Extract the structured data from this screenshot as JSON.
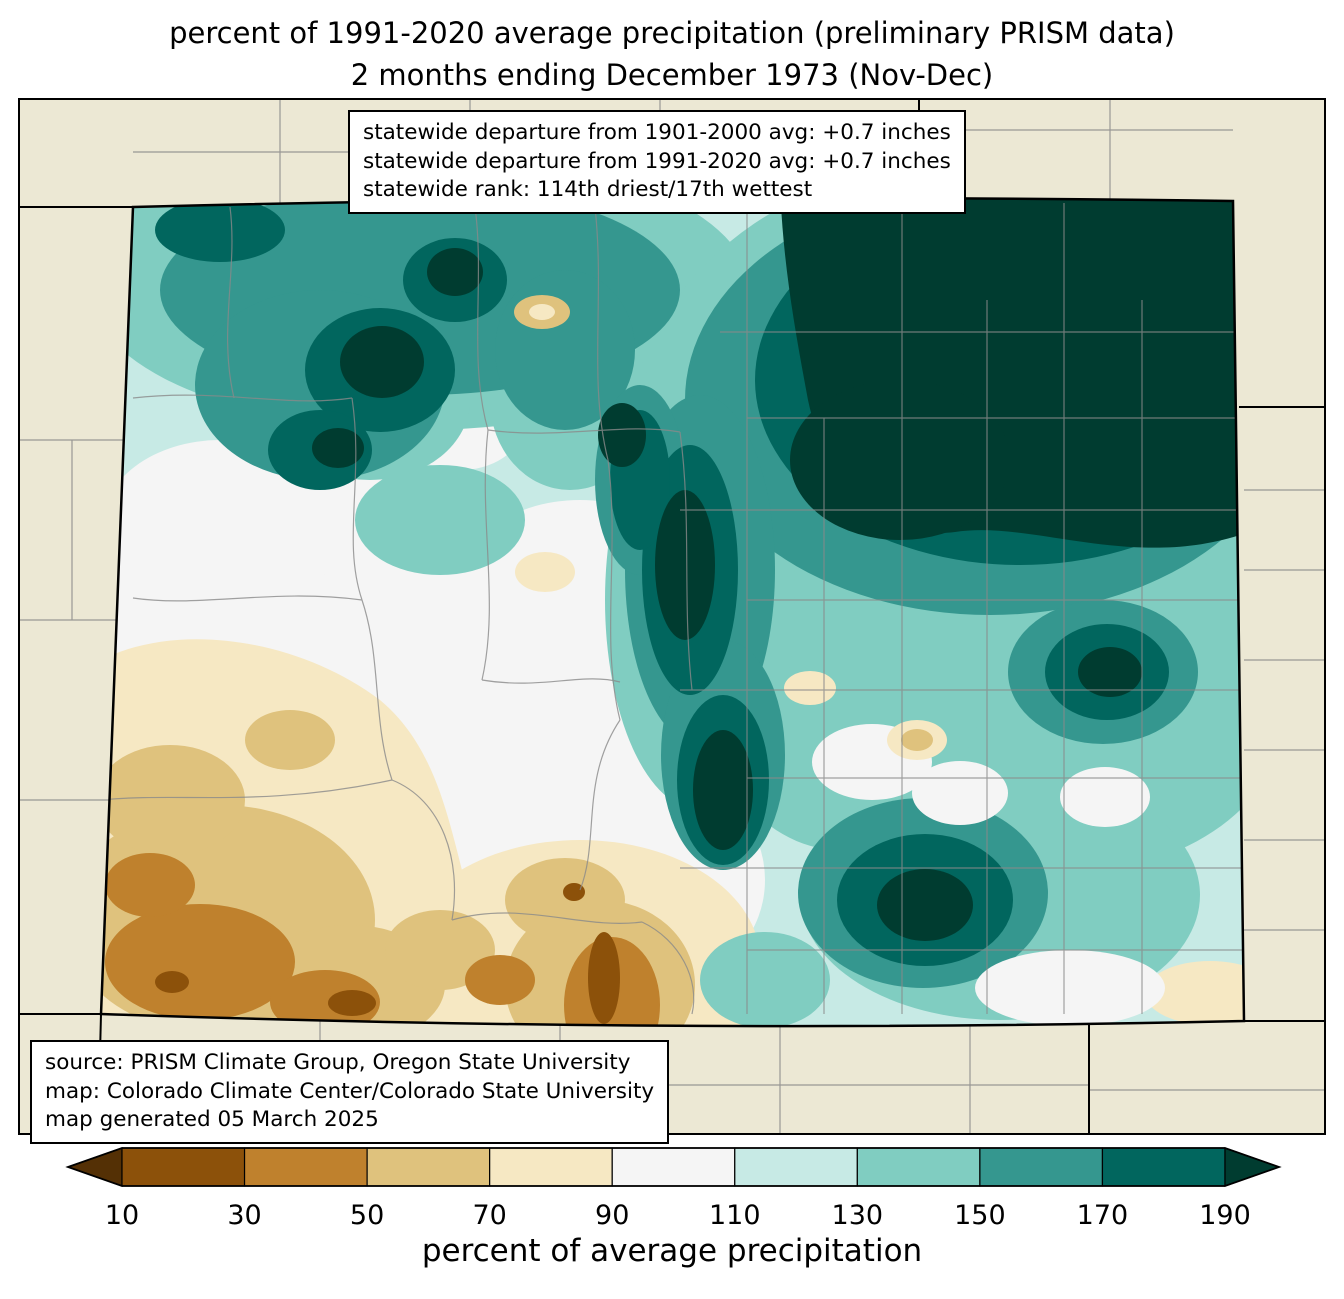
{
  "title": {
    "line1": "percent of 1991-2020 average precipitation (preliminary PRISM data)",
    "line2": "2 months ending December 1973 (Nov-Dec)"
  },
  "stats_box": {
    "line1": "statewide departure from 1901-2000 avg: +0.7 inches",
    "line2": "statewide departure from 1991-2020 avg: +0.7 inches",
    "line3": "statewide rank: 114th driest/17th wettest"
  },
  "source_box": {
    "line1": "source: PRISM Climate Group, Oregon State University",
    "line2": "map: Colorado Climate Center/Colorado State University",
    "line3": "map generated 05 March 2025"
  },
  "map": {
    "region": "Colorado",
    "background_color": "#ece8d4",
    "state_border_color": "#000000",
    "county_line_color": "#8a8a8a"
  },
  "colorbar": {
    "caption": "percent of average precipitation",
    "ticks": [
      10,
      30,
      50,
      70,
      90,
      110,
      130,
      150,
      170,
      190
    ],
    "colors": [
      "#543005",
      "#8c510a",
      "#bf812d",
      "#dfc27d",
      "#f6e8c3",
      "#f5f5f5",
      "#c7eae5",
      "#80cdc1",
      "#35978f",
      "#01665e",
      "#003c30"
    ]
  }
}
